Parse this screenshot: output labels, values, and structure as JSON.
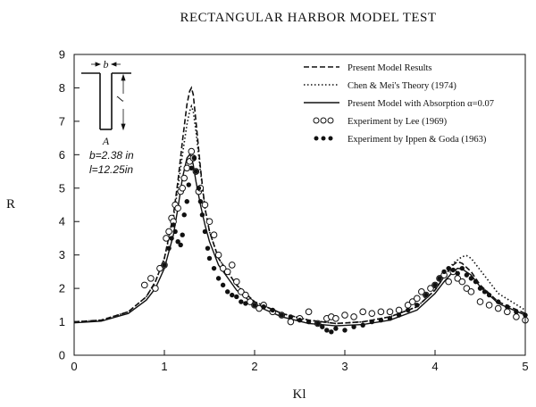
{
  "chart_data": {
    "type": "line",
    "title": "RECTANGULAR HARBOR MODEL TEST",
    "xlabel": "Kl",
    "ylabel": "R",
    "xlim": [
      0,
      5
    ],
    "ylim": [
      0,
      9
    ],
    "xticks": [
      "0",
      "1",
      "2",
      "3",
      "4",
      "5"
    ],
    "yticks": [
      "0",
      "1",
      "2",
      "3",
      "4",
      "5",
      "6",
      "7",
      "8",
      "9"
    ],
    "grid": false,
    "legend_position": "top-right",
    "inset": {
      "b_label": "b",
      "l_label": "l",
      "a_label": "A",
      "b_value": "b=2.38 in",
      "l_value": "l=12.25in"
    },
    "series": [
      {
        "name": "Present Model Results",
        "style": "dashed",
        "x": [
          0,
          0.3,
          0.6,
          0.8,
          0.9,
          1.0,
          1.1,
          1.15,
          1.2,
          1.25,
          1.28,
          1.3,
          1.32,
          1.35,
          1.4,
          1.45,
          1.5,
          1.6,
          1.8,
          2.0,
          2.3,
          2.6,
          2.9,
          3.2,
          3.5,
          3.8,
          4.0,
          4.1,
          4.2,
          4.25,
          4.3,
          4.4,
          4.5,
          4.7,
          5.0
        ],
        "y": [
          1.0,
          1.05,
          1.3,
          1.75,
          2.2,
          2.9,
          4.2,
          5.2,
          6.4,
          7.5,
          7.9,
          8.0,
          7.8,
          7.0,
          5.6,
          4.4,
          3.7,
          2.9,
          2.1,
          1.6,
          1.25,
          1.05,
          0.95,
          1.0,
          1.15,
          1.45,
          1.95,
          2.35,
          2.7,
          2.8,
          2.75,
          2.5,
          2.1,
          1.6,
          1.25
        ]
      },
      {
        "name": "Chen & Mei's Theory (1974)",
        "style": "dotted",
        "x": [
          0,
          0.3,
          0.6,
          0.8,
          0.9,
          1.0,
          1.1,
          1.15,
          1.2,
          1.25,
          1.28,
          1.3,
          1.32,
          1.35,
          1.4,
          1.45,
          1.5,
          1.6,
          1.8,
          2.0,
          2.3,
          2.6,
          2.9,
          3.2,
          3.5,
          3.8,
          4.0,
          4.1,
          4.2,
          4.3,
          4.35,
          4.4,
          4.5,
          4.7,
          5.0
        ],
        "y": [
          1.0,
          1.05,
          1.3,
          1.75,
          2.2,
          2.9,
          4.1,
          5.0,
          6.0,
          6.9,
          7.3,
          7.45,
          7.3,
          6.7,
          5.5,
          4.4,
          3.7,
          2.9,
          2.1,
          1.6,
          1.25,
          1.05,
          0.95,
          1.0,
          1.15,
          1.45,
          1.95,
          2.35,
          2.75,
          2.95,
          2.98,
          2.9,
          2.55,
          1.85,
          1.35
        ]
      },
      {
        "name": "Present Model with Absorption α=0.07",
        "style": "solid",
        "x": [
          0,
          0.3,
          0.6,
          0.8,
          0.9,
          1.0,
          1.1,
          1.15,
          1.2,
          1.25,
          1.28,
          1.3,
          1.32,
          1.35,
          1.4,
          1.45,
          1.5,
          1.6,
          1.8,
          2.0,
          2.3,
          2.6,
          2.9,
          3.2,
          3.5,
          3.8,
          4.0,
          4.1,
          4.2,
          4.25,
          4.3,
          4.4,
          4.5,
          4.7,
          5.0
        ],
        "y": [
          0.97,
          1.02,
          1.25,
          1.65,
          2.0,
          2.6,
          3.6,
          4.4,
          5.3,
          5.9,
          6.0,
          5.95,
          5.7,
          5.2,
          4.5,
          3.9,
          3.4,
          2.7,
          1.95,
          1.5,
          1.15,
          0.95,
          0.88,
          0.92,
          1.05,
          1.35,
          1.85,
          2.2,
          2.5,
          2.6,
          2.58,
          2.4,
          2.05,
          1.55,
          1.2
        ]
      },
      {
        "name": "Experiment by Lee (1969)",
        "style": "open-circle",
        "x": [
          0.78,
          0.85,
          0.9,
          0.95,
          1.0,
          1.02,
          1.05,
          1.08,
          1.1,
          1.12,
          1.15,
          1.18,
          1.2,
          1.22,
          1.25,
          1.28,
          1.3,
          1.32,
          1.35,
          1.38,
          1.4,
          1.45,
          1.5,
          1.55,
          1.6,
          1.65,
          1.7,
          1.75,
          1.8,
          1.85,
          1.9,
          1.95,
          2.0,
          2.05,
          2.1,
          2.2,
          2.3,
          2.4,
          2.5,
          2.6,
          2.7,
          2.8,
          2.85,
          2.9,
          3.0,
          3.1,
          3.2,
          3.3,
          3.4,
          3.5,
          3.6,
          3.7,
          3.75,
          3.8,
          3.85,
          3.9,
          3.95,
          4.0,
          4.05,
          4.1,
          4.15,
          4.2,
          4.25,
          4.3,
          4.35,
          4.4,
          4.5,
          4.6,
          4.7,
          4.8,
          4.9,
          5.0
        ],
        "y": [
          2.1,
          2.3,
          2.0,
          2.6,
          2.7,
          3.5,
          3.7,
          4.1,
          4.0,
          4.5,
          4.4,
          4.9,
          5.0,
          5.3,
          5.6,
          5.8,
          6.1,
          5.9,
          5.5,
          4.9,
          5.0,
          4.5,
          4.0,
          3.6,
          3.0,
          2.6,
          2.5,
          2.7,
          2.2,
          1.9,
          1.8,
          1.6,
          1.5,
          1.4,
          1.5,
          1.3,
          1.2,
          1.0,
          1.1,
          1.3,
          0.95,
          1.1,
          1.15,
          1.1,
          1.2,
          1.15,
          1.3,
          1.25,
          1.3,
          1.3,
          1.35,
          1.5,
          1.6,
          1.7,
          1.9,
          1.8,
          2.0,
          2.1,
          2.3,
          2.4,
          2.2,
          2.5,
          2.3,
          2.2,
          2.0,
          1.9,
          1.6,
          1.5,
          1.4,
          1.3,
          1.15,
          1.05
        ]
      },
      {
        "name": "Experiment by Ippen & Goda (1963)",
        "style": "filled-circle",
        "x": [
          1.0,
          1.05,
          1.08,
          1.1,
          1.12,
          1.15,
          1.18,
          1.2,
          1.22,
          1.25,
          1.27,
          1.3,
          1.33,
          1.35,
          1.38,
          1.4,
          1.42,
          1.45,
          1.48,
          1.5,
          1.55,
          1.6,
          1.65,
          1.7,
          1.75,
          1.8,
          1.85,
          1.9,
          2.0,
          2.1,
          2.2,
          2.3,
          2.4,
          2.5,
          2.6,
          2.7,
          2.75,
          2.8,
          2.85,
          2.9,
          3.0,
          3.1,
          3.2,
          3.3,
          3.4,
          3.5,
          3.6,
          3.7,
          3.8,
          3.9,
          4.0,
          4.05,
          4.1,
          4.15,
          4.2,
          4.25,
          4.3,
          4.35,
          4.4,
          4.45,
          4.5,
          4.55,
          4.6,
          4.7,
          4.8,
          4.9,
          5.0
        ],
        "y": [
          2.7,
          3.2,
          3.5,
          3.9,
          3.7,
          3.4,
          3.3,
          3.6,
          4.2,
          4.6,
          5.1,
          5.6,
          5.9,
          5.5,
          5.0,
          4.6,
          4.2,
          3.7,
          3.2,
          2.9,
          2.6,
          2.3,
          2.1,
          1.9,
          1.8,
          1.75,
          1.6,
          1.55,
          1.5,
          1.45,
          1.35,
          1.2,
          1.15,
          1.05,
          1.0,
          0.95,
          0.85,
          0.75,
          0.7,
          0.8,
          0.75,
          0.85,
          0.9,
          1.0,
          1.05,
          1.1,
          1.2,
          1.35,
          1.5,
          1.8,
          2.1,
          2.3,
          2.5,
          2.6,
          2.55,
          2.45,
          2.6,
          2.4,
          2.3,
          2.2,
          2.0,
          1.9,
          1.8,
          1.6,
          1.45,
          1.3,
          1.2
        ]
      }
    ]
  }
}
